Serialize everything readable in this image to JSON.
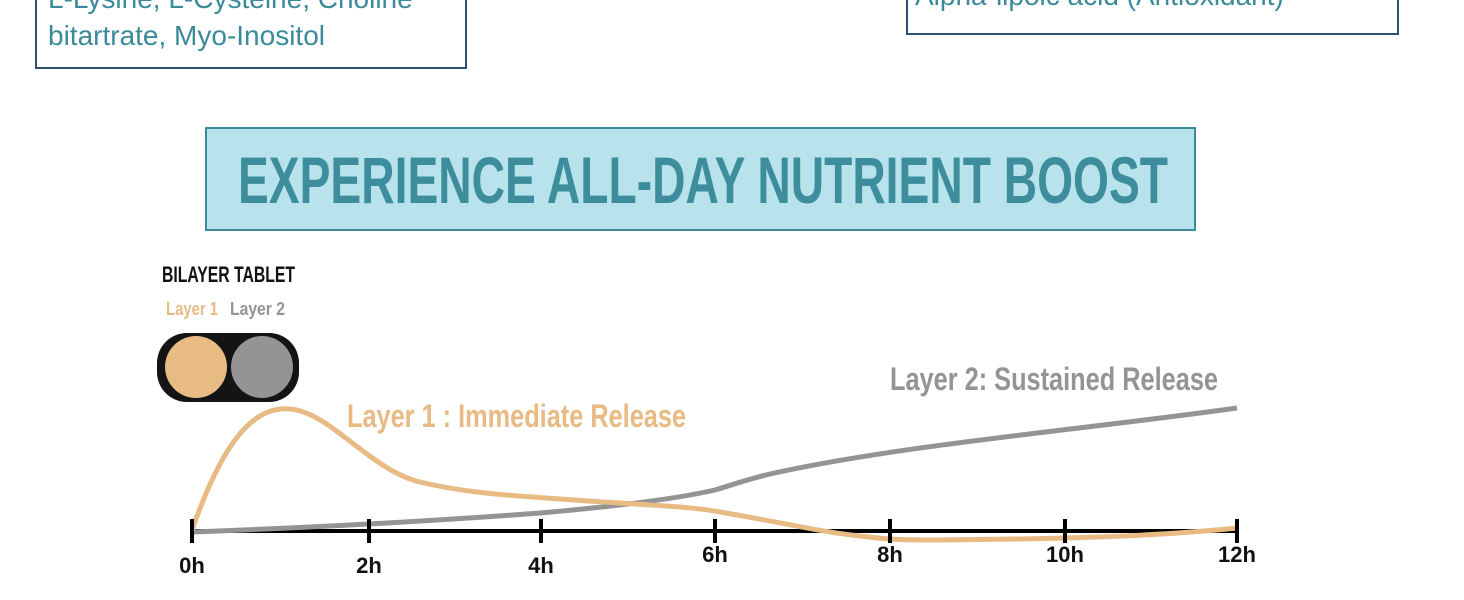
{
  "cards": [
    {
      "lines": [
        "L-Lysine, L-Cysteine, Choline",
        "bitartrate, Myo-Inositol"
      ]
    },
    {
      "lines": [
        "Alpha-lipoic acid (Antioxidant)"
      ]
    }
  ],
  "heading": "EXPERIENCE ALL-DAY NUTRIENT BOOST",
  "tablet": {
    "title": "BILAYER TABLET",
    "legend": [
      "Layer 1",
      "Layer 2"
    ]
  },
  "release": {
    "layer1": "Layer 1 : Immediate Release",
    "layer2": "Layer 2: Sustained Release",
    "ticks": [
      "0h",
      "2h",
      "4h",
      "6h",
      "8h",
      "10h",
      "12h"
    ]
  }
}
